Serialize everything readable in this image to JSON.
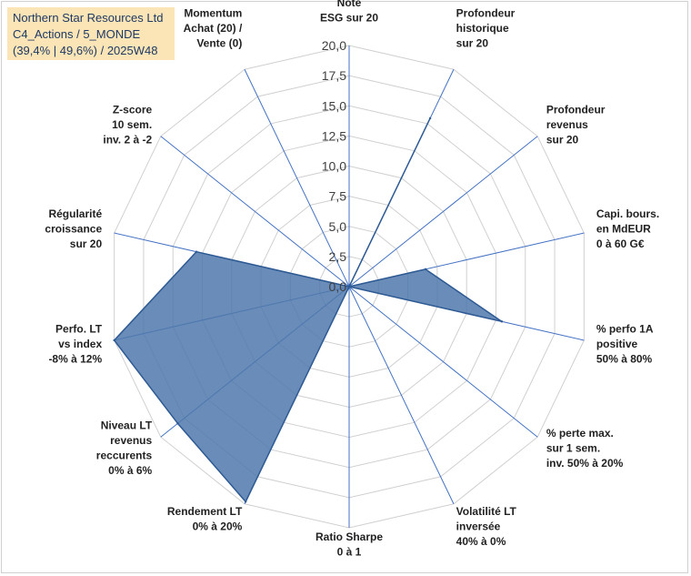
{
  "info_box": {
    "line1": "Northern Star Resources Ltd",
    "line2": "C4_Actions / 5_MONDE",
    "line3": "(39,4% | 49,6%) / 2025W48"
  },
  "colors": {
    "fill": "#4f78ab",
    "stroke": "#2e5a94",
    "grid": "#d0d0d0",
    "spokes": "#4472c4",
    "info_bg": "#fbe5b6"
  },
  "chart_data": {
    "type": "radar",
    "title": "",
    "rmin": 0,
    "rmax": 20,
    "ticks": [
      "0,0",
      "2,5",
      "5,0",
      "7,5",
      "10,0",
      "12,5",
      "15,0",
      "17,5",
      "20,0"
    ],
    "tick_values": [
      0,
      2.5,
      5,
      7.5,
      10,
      12.5,
      15,
      17.5,
      20
    ],
    "axes": [
      [
        "Note",
        "ESG sur 20"
      ],
      [
        "Profondeur",
        "historique",
        "sur 20"
      ],
      [
        "Profondeur",
        "revenus",
        "sur 20"
      ],
      [
        "Capi. bours.",
        "en MdEUR",
        "0 à 60 G€"
      ],
      [
        "% perfo 1A",
        "positive",
        "50% à 80%"
      ],
      [
        "% perte max.",
        "sur 1 sem.",
        "inv. 50% à 20%"
      ],
      [
        "Volatilité LT",
        "inversée",
        "40% à 0%"
      ],
      [
        "Ratio Sharpe",
        "0 à 1"
      ],
      [
        "Rendement LT",
        "0% à 20%"
      ],
      [
        "Niveau LT",
        "revenus",
        "reccurents",
        "0% à 6%"
      ],
      [
        "Perfo. LT",
        "vs index",
        "-8% à 12%"
      ],
      [
        "Régularité",
        "croissance",
        "sur 20"
      ],
      [
        "Z-score",
        "10 sem.",
        "inv. 2 à -2"
      ],
      [
        "Momentum",
        "Achat (20) /",
        "Vente (0)"
      ]
    ],
    "values": [
      0,
      15.5,
      0,
      6.5,
      13,
      0,
      0,
      0,
      19.8,
      18.2,
      20,
      13,
      0,
      0
    ],
    "grid": true,
    "legend": "none"
  }
}
